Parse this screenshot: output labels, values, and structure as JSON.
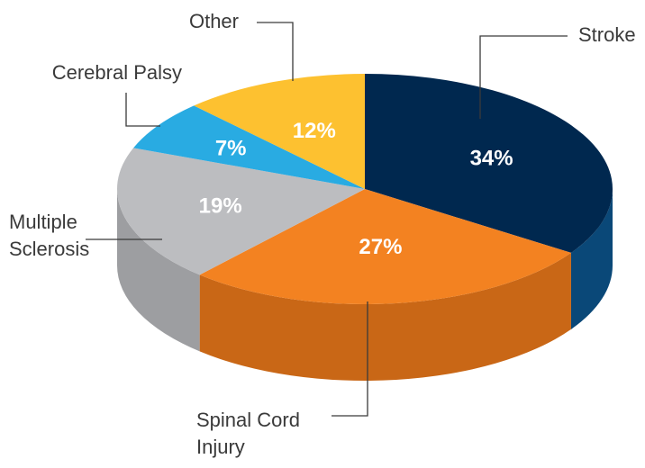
{
  "chart_data": {
    "type": "pie",
    "categories": [
      "Stroke",
      "Spinal Cord Injury",
      "Multiple Sclerosis",
      "Cerebral Palsy",
      "Other"
    ],
    "values": [
      34,
      27,
      19,
      7,
      12
    ],
    "value_labels": [
      "34%",
      "27%",
      "19%",
      "7%",
      "12%"
    ],
    "colors": [
      "#00284f",
      "#f38221",
      "#bcbdc0",
      "#29abe2",
      "#fdc130"
    ],
    "side_colors": [
      "#0a4878",
      "#c96716",
      "#9d9ea1",
      "#1f8cbc",
      "#d49f22"
    ]
  }
}
